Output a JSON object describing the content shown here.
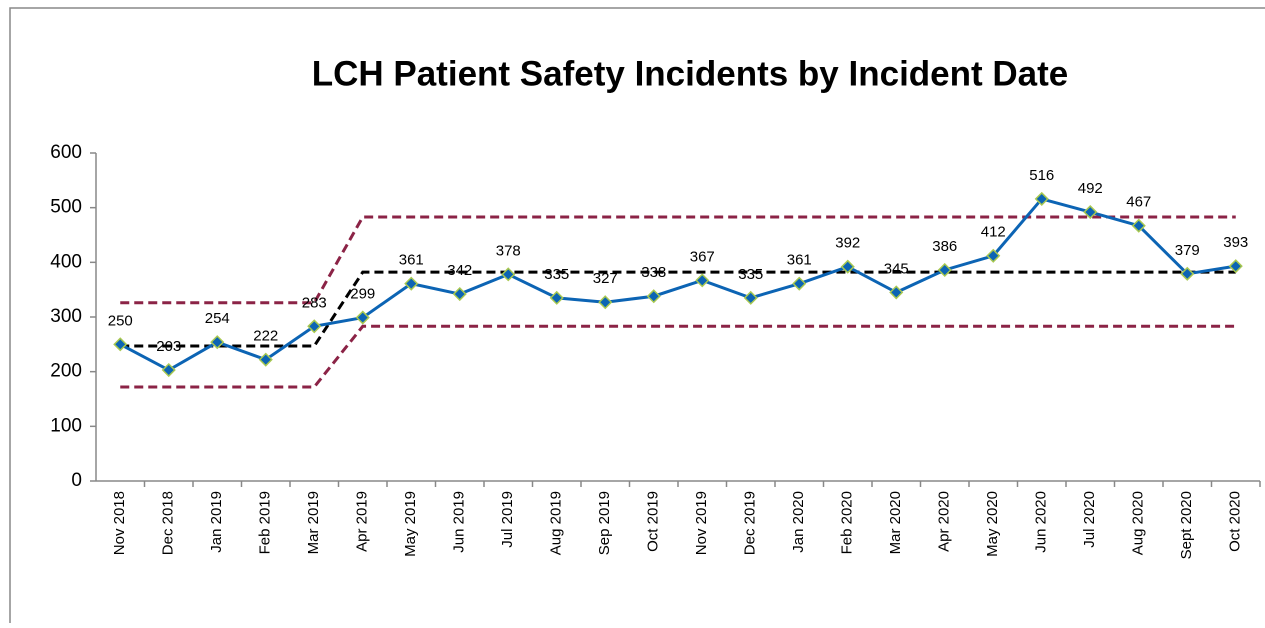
{
  "chart_data": {
    "type": "line",
    "title": "LCH Patient Safety Incidents by Incident Date",
    "categories": [
      "Nov 2018",
      "Dec 2018",
      "Jan 2019",
      "Feb 2019",
      "Mar 2019",
      "Apr 2019",
      "May 2019",
      "Jun 2019",
      "Jul 2019",
      "Aug 2019",
      "Sep 2019",
      "Oct 2019",
      "Nov 2019",
      "Dec 2019",
      "Jan 2020",
      "Feb 2020",
      "Mar 2020",
      "Apr 2020",
      "May 2020",
      "Jun 2020",
      "Jul 2020",
      "Aug 2020",
      "Sept 2020",
      "Oct 2020"
    ],
    "series": [
      {
        "color": "#0c64b4",
        "marker": "diamond",
        "marker_border": "#a8c850",
        "data_labels": true,
        "values": [
          250,
          203,
          254,
          222,
          283,
          299,
          361,
          342,
          378,
          335,
          327,
          338,
          367,
          335,
          361,
          392,
          345,
          386,
          412,
          516,
          492,
          467,
          379,
          393
        ]
      },
      {
        "color": "#000000",
        "dashed": true,
        "values": [
          247,
          247,
          247,
          247,
          247,
          382,
          382,
          382,
          382,
          382,
          382,
          382,
          382,
          382,
          382,
          382,
          382,
          382,
          382,
          382,
          382,
          382,
          382,
          382
        ]
      },
      {
        "color": "#8b2346",
        "dashed": true,
        "values": [
          326,
          326,
          326,
          326,
          326,
          483,
          483,
          483,
          483,
          483,
          483,
          483,
          483,
          483,
          483,
          483,
          483,
          483,
          483,
          483,
          483,
          483,
          483,
          483
        ]
      },
      {
        "color": "#8b2346",
        "dashed": true,
        "values": [
          172,
          172,
          172,
          172,
          172,
          283,
          283,
          283,
          283,
          283,
          283,
          283,
          283,
          283,
          283,
          283,
          283,
          283,
          283,
          283,
          283,
          283,
          283,
          283
        ]
      }
    ],
    "ylim": [
      0,
      600
    ],
    "yticks": [
      0,
      100,
      200,
      300,
      400,
      500,
      600
    ],
    "grid": false
  }
}
